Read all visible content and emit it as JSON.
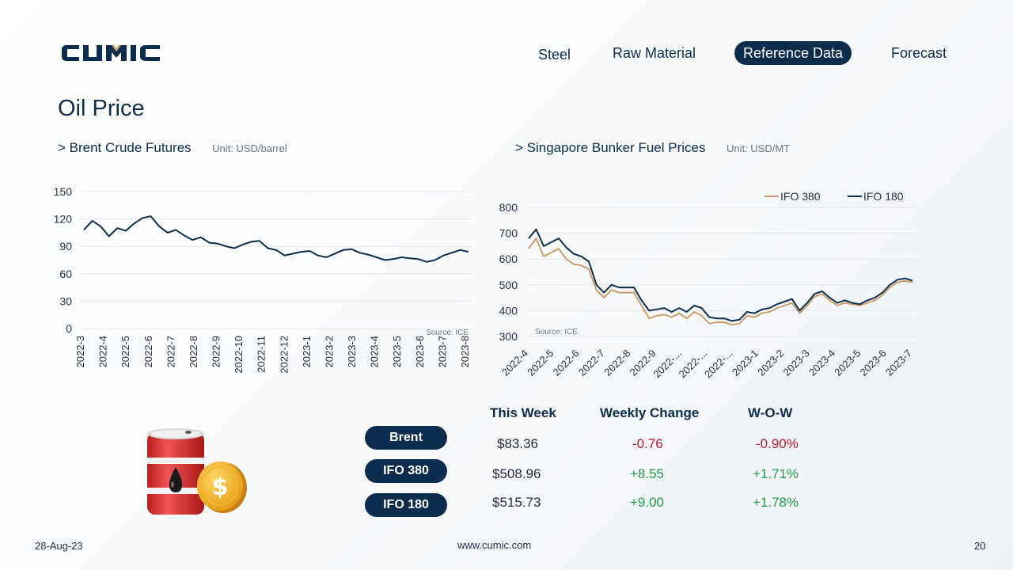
{
  "brand": {
    "logo_text": "CUMIC"
  },
  "nav": {
    "items": [
      {
        "label": "Steel",
        "active": false
      },
      {
        "label": "Raw Material",
        "active": false
      },
      {
        "label": "Reference Data",
        "active": true
      },
      {
        "label": "Forecast",
        "active": false
      }
    ]
  },
  "page": {
    "title": "Oil Price"
  },
  "sections": {
    "brent": {
      "title": "> Brent Crude Futures",
      "unit": "Unit: USD/barrel"
    },
    "bunker": {
      "title": "> Singapore Bunker Fuel Prices",
      "unit": "Unit: USD/MT"
    }
  },
  "chart_data": [
    {
      "type": "line",
      "title": "",
      "source": "Source: ICE",
      "x_ticks": [
        "2022-3",
        "2022-4",
        "2022-5",
        "2022-6",
        "2022-7",
        "2022-8",
        "2022-9",
        "2022-10",
        "2022-11",
        "2022-12",
        "2023-1",
        "2023-2",
        "2023-3",
        "2023-4",
        "2023-5",
        "2023-6",
        "2023-7",
        "2023-8"
      ],
      "y_ticks": [
        0,
        30,
        60,
        90,
        120,
        150
      ],
      "ylim": [
        0,
        150
      ],
      "grid": true,
      "series": [
        {
          "values": [
            108,
            118,
            112,
            101,
            110,
            107,
            115,
            121,
            123,
            112,
            105,
            108,
            102,
            97,
            100,
            94,
            93,
            90,
            88,
            92,
            95,
            96,
            88,
            86,
            80,
            82,
            84,
            85,
            80,
            78,
            82,
            86,
            87,
            83,
            81,
            78,
            75,
            76,
            78,
            77,
            76,
            73,
            75,
            80,
            83,
            86,
            84
          ],
          "color": "#0d2d4f"
        }
      ]
    },
    {
      "type": "line",
      "title": "",
      "source": "Source: ICE",
      "x_ticks": [
        "2022-4",
        "2022-5",
        "2022-6",
        "2022-7",
        "2022-8",
        "2022-9",
        "2022-...",
        "2022-...",
        "2022-...",
        "2023-1",
        "2023-2",
        "2023-3",
        "2023-4",
        "2023-5",
        "2023-6",
        "2023-7"
      ],
      "y_ticks": [
        300,
        400,
        500,
        600,
        700,
        800
      ],
      "ylim": [
        300,
        800
      ],
      "grid": true,
      "legend": "top-right",
      "series": [
        {
          "name": "IFO 380",
          "color": "#c9a06a",
          "values": [
            640,
            680,
            610,
            625,
            640,
            600,
            580,
            575,
            560,
            480,
            450,
            480,
            470,
            470,
            470,
            420,
            370,
            380,
            385,
            375,
            390,
            370,
            395,
            380,
            350,
            355,
            355,
            345,
            350,
            380,
            375,
            390,
            395,
            410,
            420,
            430,
            390,
            420,
            455,
            465,
            440,
            420,
            430,
            425,
            420,
            430,
            440,
            460,
            490,
            510,
            515,
            510
          ]
        },
        {
          "name": "IFO 180",
          "color": "#0d2d4f",
          "values": [
            680,
            715,
            650,
            665,
            680,
            645,
            620,
            610,
            590,
            500,
            470,
            500,
            490,
            490,
            490,
            440,
            400,
            405,
            410,
            395,
            410,
            395,
            420,
            410,
            375,
            370,
            370,
            360,
            365,
            395,
            390,
            405,
            410,
            425,
            435,
            445,
            400,
            430,
            465,
            475,
            450,
            430,
            440,
            430,
            425,
            440,
            450,
            470,
            500,
            520,
            525,
            516
          ]
        }
      ]
    }
  ],
  "table": {
    "headers": {
      "this_week": "This Week",
      "weekly_change": "Weekly Change",
      "wow": "W-O-W"
    },
    "rows": [
      {
        "label": "Brent",
        "this_week": "$83.36",
        "change": "-0.76",
        "wow": "-0.90%",
        "direction": "neg"
      },
      {
        "label": "IFO 380",
        "this_week": "$508.96",
        "change": "+8.55",
        "wow": "+1.71%",
        "direction": "pos"
      },
      {
        "label": "IFO 180",
        "this_week": "$515.73",
        "change": "+9.00",
        "wow": "+1.78%",
        "direction": "pos"
      }
    ]
  },
  "icons": {
    "illustration": "oil-barrel-dollar-icon"
  },
  "colors": {
    "navy": "#0d2d4f",
    "gold": "#c9a06a",
    "negative": "#c0192b",
    "positive": "#1f9d46"
  },
  "footer": {
    "date": "28-Aug-23",
    "website": "www.cumic.com",
    "page_number": "20"
  }
}
